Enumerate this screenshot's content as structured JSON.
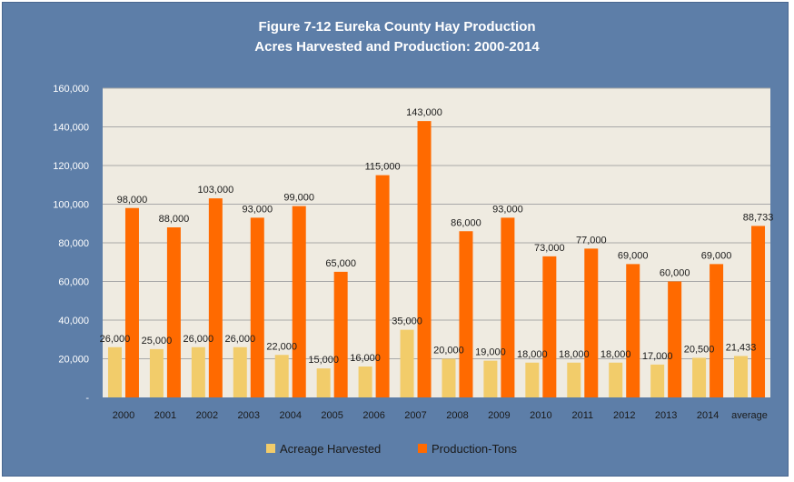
{
  "chart_data": {
    "type": "bar",
    "title": "Figure 7-12 Eureka County Hay Production",
    "subtitle": "Acres Harvested and Production: 2000-2014",
    "categories": [
      "2000",
      "2001",
      "2002",
      "2003",
      "2004",
      "2005",
      "2006",
      "2007",
      "2008",
      "2009",
      "2010",
      "2011",
      "2012",
      "2013",
      "2014",
      "average"
    ],
    "series": [
      {
        "name": "Acreage Harvested",
        "color": "#f2cc6a",
        "values": [
          26000,
          25000,
          26000,
          26000,
          22000,
          15000,
          16000,
          35000,
          20000,
          19000,
          18000,
          18000,
          18000,
          17000,
          20500,
          21433
        ]
      },
      {
        "name": "Production-Tons",
        "color": "#ff6a00",
        "values": [
          98000,
          88000,
          103000,
          93000,
          99000,
          65000,
          115000,
          143000,
          86000,
          93000,
          73000,
          77000,
          69000,
          60000,
          69000,
          88733
        ]
      }
    ],
    "ylim": [
      0,
      160000
    ],
    "yticks": [
      0,
      20000,
      40000,
      60000,
      80000,
      100000,
      120000,
      140000,
      160000
    ],
    "ytick_labels": [
      "-",
      "20,000",
      "40,000",
      "60,000",
      "80,000",
      "100,000",
      "120,000",
      "140,000",
      "160,000"
    ],
    "grid": true,
    "legend_position": "bottom",
    "plot_background": "#efebe1",
    "frame_background": "#5d7ea8"
  }
}
